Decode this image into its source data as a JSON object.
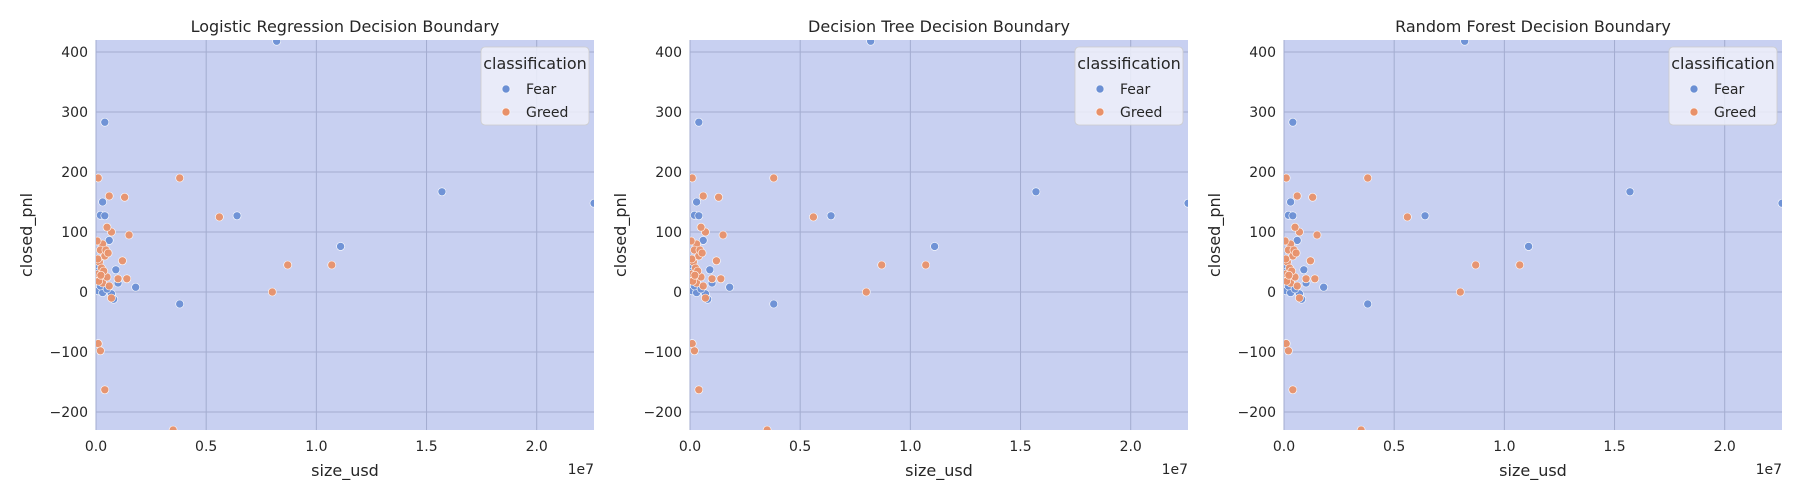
{
  "colors": {
    "background_region": "#c8d0f1",
    "grid": "#a3acd0",
    "legend_bg": "#eef0fa",
    "legend_border": "#cccccc"
  },
  "chart_data": [
    {
      "type": "scatter",
      "title": "Logistic Regression Decision Boundary",
      "xlabel": "size_usd",
      "ylabel": "closed_pnl",
      "x_offset_label": "1e7",
      "xlim": [
        0,
        22600000
      ],
      "ylim": [
        -230,
        420
      ],
      "xticks": [
        0,
        5000000,
        10000000,
        15000000,
        20000000
      ],
      "xtick_labels": [
        "0.0",
        "0.5",
        "1.0",
        "1.5",
        "2.0"
      ],
      "yticks": [
        -200,
        -100,
        0,
        100,
        200,
        300,
        400
      ],
      "ytick_labels": [
        "−200",
        "−100",
        "0",
        "100",
        "200",
        "300",
        "400"
      ],
      "grid": true,
      "legend": {
        "title": "classification",
        "placement": "top-right"
      },
      "series": [
        {
          "name": "Fear",
          "color": "#6b8fd4",
          "points": [
            [
              8200000,
              418
            ],
            [
              400000,
              283
            ],
            [
              15700000,
              167
            ],
            [
              22600000,
              148
            ],
            [
              6400000,
              127
            ],
            [
              200000,
              128
            ],
            [
              400000,
              127
            ],
            [
              300000,
              150
            ],
            [
              11100000,
              76
            ],
            [
              600000,
              86
            ],
            [
              1800000,
              8
            ],
            [
              3800000,
              -20
            ],
            [
              700000,
              -3
            ],
            [
              800000,
              -12
            ],
            [
              900000,
              37
            ],
            [
              100000,
              2
            ],
            [
              300000,
              -1
            ],
            [
              200000,
              10
            ],
            [
              100000,
              44
            ],
            [
              50000,
              33
            ],
            [
              300000,
              22
            ],
            [
              500000,
              5
            ],
            [
              1000000,
              15
            ],
            [
              60000,
              20
            ]
          ]
        },
        {
          "name": "Greed",
          "color": "#e8916a",
          "points": [
            [
              100000,
              190
            ],
            [
              3800000,
              190
            ],
            [
              5600000,
              125
            ],
            [
              1300000,
              158
            ],
            [
              600000,
              160
            ],
            [
              8700000,
              45
            ],
            [
              10700000,
              45
            ],
            [
              8000000,
              0
            ],
            [
              1500000,
              95
            ],
            [
              700000,
              100
            ],
            [
              500000,
              108
            ],
            [
              1200000,
              52
            ],
            [
              1400000,
              22
            ],
            [
              1000000,
              22
            ],
            [
              100000,
              -86
            ],
            [
              200000,
              -98
            ],
            [
              400000,
              -163
            ],
            [
              3500000,
              -230
            ],
            [
              300000,
              80
            ],
            [
              200000,
              70
            ],
            [
              400000,
              60
            ],
            [
              100000,
              30
            ],
            [
              200000,
              20
            ],
            [
              300000,
              15
            ],
            [
              500000,
              25
            ],
            [
              600000,
              10
            ],
            [
              700000,
              -10
            ],
            [
              150000,
              50
            ],
            [
              250000,
              40
            ],
            [
              350000,
              35
            ],
            [
              450000,
              70
            ],
            [
              550000,
              65
            ],
            [
              50000,
              85
            ],
            [
              80000,
              55
            ],
            [
              120000,
              18
            ],
            [
              220000,
              28
            ]
          ]
        }
      ]
    },
    {
      "type": "scatter",
      "title": "Decision Tree Decision Boundary",
      "xlabel": "size_usd",
      "ylabel": "closed_pnl",
      "x_offset_label": "1e7",
      "xlim": [
        0,
        22600000
      ],
      "ylim": [
        -230,
        420
      ],
      "xticks": [
        0,
        5000000,
        10000000,
        15000000,
        20000000
      ],
      "xtick_labels": [
        "0.0",
        "0.5",
        "1.0",
        "1.5",
        "2.0"
      ],
      "yticks": [
        -200,
        -100,
        0,
        100,
        200,
        300,
        400
      ],
      "ytick_labels": [
        "−200",
        "−100",
        "0",
        "100",
        "200",
        "300",
        "400"
      ],
      "grid": true,
      "legend": {
        "title": "classification",
        "placement": "top-right"
      },
      "series": [
        {
          "name": "Fear",
          "color": "#6b8fd4",
          "points": [
            [
              8200000,
              418
            ],
            [
              400000,
              283
            ],
            [
              15700000,
              167
            ],
            [
              22600000,
              148
            ],
            [
              6400000,
              127
            ],
            [
              200000,
              128
            ],
            [
              400000,
              127
            ],
            [
              300000,
              150
            ],
            [
              11100000,
              76
            ],
            [
              600000,
              86
            ],
            [
              1800000,
              8
            ],
            [
              3800000,
              -20
            ],
            [
              700000,
              -3
            ],
            [
              800000,
              -12
            ],
            [
              900000,
              37
            ],
            [
              100000,
              2
            ],
            [
              300000,
              -1
            ],
            [
              200000,
              10
            ],
            [
              100000,
              44
            ],
            [
              50000,
              33
            ],
            [
              300000,
              22
            ],
            [
              500000,
              5
            ],
            [
              1000000,
              15
            ],
            [
              60000,
              20
            ]
          ]
        },
        {
          "name": "Greed",
          "color": "#e8916a",
          "points": [
            [
              100000,
              190
            ],
            [
              3800000,
              190
            ],
            [
              5600000,
              125
            ],
            [
              1300000,
              158
            ],
            [
              600000,
              160
            ],
            [
              8700000,
              45
            ],
            [
              10700000,
              45
            ],
            [
              8000000,
              0
            ],
            [
              1500000,
              95
            ],
            [
              700000,
              100
            ],
            [
              500000,
              108
            ],
            [
              1200000,
              52
            ],
            [
              1400000,
              22
            ],
            [
              1000000,
              22
            ],
            [
              100000,
              -86
            ],
            [
              200000,
              -98
            ],
            [
              400000,
              -163
            ],
            [
              3500000,
              -230
            ],
            [
              300000,
              80
            ],
            [
              200000,
              70
            ],
            [
              400000,
              60
            ],
            [
              100000,
              30
            ],
            [
              200000,
              20
            ],
            [
              300000,
              15
            ],
            [
              500000,
              25
            ],
            [
              600000,
              10
            ],
            [
              700000,
              -10
            ],
            [
              150000,
              50
            ],
            [
              250000,
              40
            ],
            [
              350000,
              35
            ],
            [
              450000,
              70
            ],
            [
              550000,
              65
            ],
            [
              50000,
              85
            ],
            [
              80000,
              55
            ],
            [
              120000,
              18
            ],
            [
              220000,
              28
            ]
          ]
        }
      ]
    },
    {
      "type": "scatter",
      "title": "Random Forest Decision Boundary",
      "xlabel": "size_usd",
      "ylabel": "closed_pnl",
      "x_offset_label": "1e7",
      "xlim": [
        0,
        22600000
      ],
      "ylim": [
        -230,
        420
      ],
      "xticks": [
        0,
        5000000,
        10000000,
        15000000,
        20000000
      ],
      "xtick_labels": [
        "0.0",
        "0.5",
        "1.0",
        "1.5",
        "2.0"
      ],
      "yticks": [
        -200,
        -100,
        0,
        100,
        200,
        300,
        400
      ],
      "ytick_labels": [
        "−200",
        "−100",
        "0",
        "100",
        "200",
        "300",
        "400"
      ],
      "grid": true,
      "legend": {
        "title": "classification",
        "placement": "top-right"
      },
      "series": [
        {
          "name": "Fear",
          "color": "#6b8fd4",
          "points": [
            [
              8200000,
              418
            ],
            [
              400000,
              283
            ],
            [
              15700000,
              167
            ],
            [
              22600000,
              148
            ],
            [
              6400000,
              127
            ],
            [
              200000,
              128
            ],
            [
              400000,
              127
            ],
            [
              300000,
              150
            ],
            [
              11100000,
              76
            ],
            [
              600000,
              86
            ],
            [
              1800000,
              8
            ],
            [
              3800000,
              -20
            ],
            [
              700000,
              -3
            ],
            [
              800000,
              -12
            ],
            [
              900000,
              37
            ],
            [
              100000,
              2
            ],
            [
              300000,
              -1
            ],
            [
              200000,
              10
            ],
            [
              100000,
              44
            ],
            [
              50000,
              33
            ],
            [
              300000,
              22
            ],
            [
              500000,
              5
            ],
            [
              1000000,
              15
            ],
            [
              60000,
              20
            ]
          ]
        },
        {
          "name": "Greed",
          "color": "#e8916a",
          "points": [
            [
              100000,
              190
            ],
            [
              3800000,
              190
            ],
            [
              5600000,
              125
            ],
            [
              1300000,
              158
            ],
            [
              600000,
              160
            ],
            [
              8700000,
              45
            ],
            [
              10700000,
              45
            ],
            [
              8000000,
              0
            ],
            [
              1500000,
              95
            ],
            [
              700000,
              100
            ],
            [
              500000,
              108
            ],
            [
              1200000,
              52
            ],
            [
              1400000,
              22
            ],
            [
              1000000,
              22
            ],
            [
              100000,
              -86
            ],
            [
              200000,
              -98
            ],
            [
              400000,
              -163
            ],
            [
              3500000,
              -230
            ],
            [
              300000,
              80
            ],
            [
              200000,
              70
            ],
            [
              400000,
              60
            ],
            [
              100000,
              30
            ],
            [
              200000,
              20
            ],
            [
              300000,
              15
            ],
            [
              500000,
              25
            ],
            [
              600000,
              10
            ],
            [
              700000,
              -10
            ],
            [
              150000,
              50
            ],
            [
              250000,
              40
            ],
            [
              350000,
              35
            ],
            [
              450000,
              70
            ],
            [
              550000,
              65
            ],
            [
              50000,
              85
            ],
            [
              80000,
              55
            ],
            [
              120000,
              18
            ],
            [
              220000,
              28
            ]
          ]
        }
      ]
    }
  ]
}
